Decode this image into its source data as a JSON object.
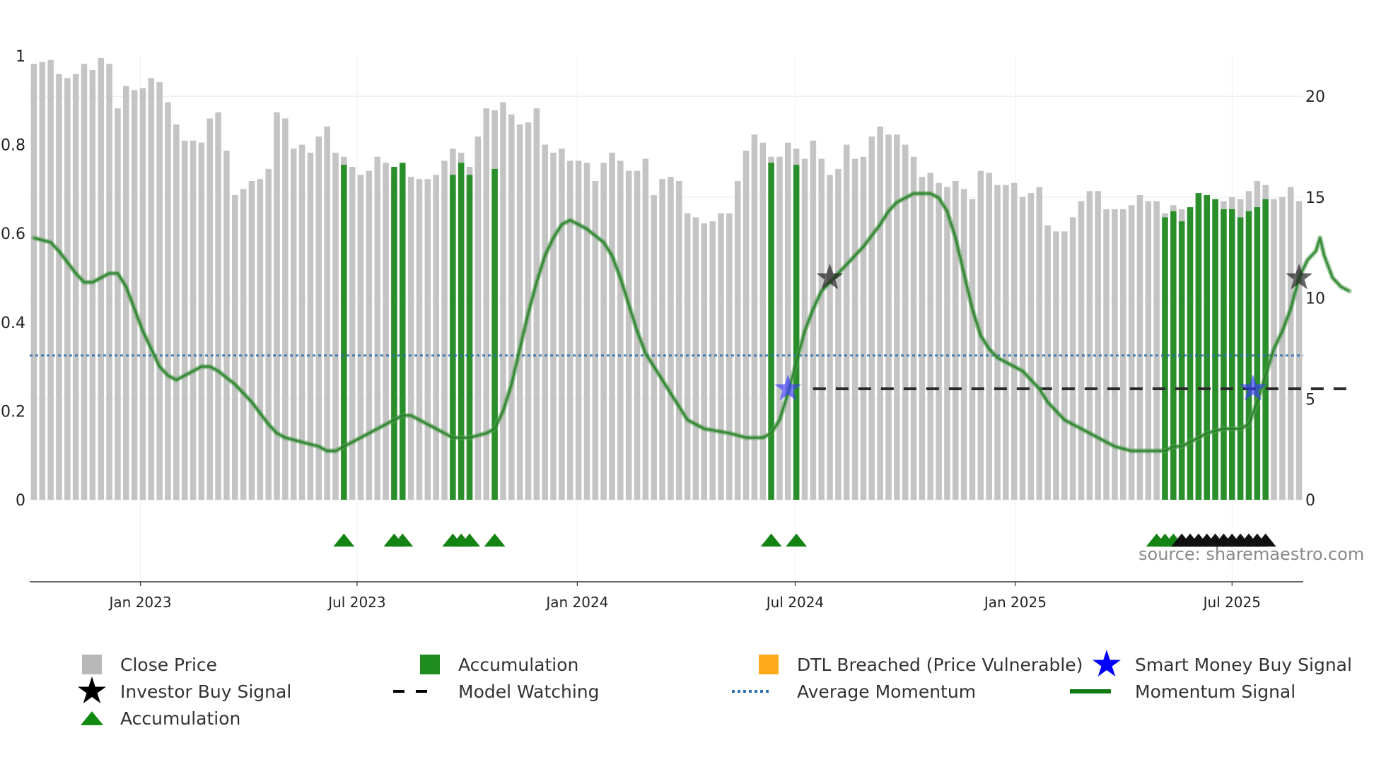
{
  "chart_data": {
    "type": "bar",
    "title": "",
    "source_text": "source: sharemaestro.com",
    "left_axis": {
      "range": [
        0,
        1
      ],
      "ticks": [
        "0",
        "0.2",
        "0.4",
        "0.6",
        "0.8",
        "1"
      ]
    },
    "right_axis": {
      "range": [
        0,
        22
      ],
      "ticks": [
        "0",
        "5",
        "10",
        "15",
        "20"
      ]
    },
    "x_axis": {
      "ticks": [
        "Jan 2023",
        "Jul 2023",
        "Jan 2024",
        "Jul 2024",
        "Jan 2025",
        "Jul 2025"
      ],
      "start": "2022-10-04",
      "end": "2025-10-06",
      "step_days": 7
    },
    "close_price": [
      21.6,
      21.7,
      21.8,
      21.1,
      20.9,
      21.1,
      21.6,
      21.3,
      21.9,
      21.6,
      19.4,
      20.5,
      20.3,
      20.4,
      20.9,
      20.7,
      19.7,
      18.6,
      17.8,
      17.8,
      17.7,
      18.9,
      19.2,
      17.3,
      15.1,
      15.4,
      15.8,
      15.9,
      16.4,
      19.2,
      18.9,
      17.4,
      17.6,
      17.2,
      18.0,
      18.5,
      17.2,
      17.0,
      16.5,
      16.1,
      16.3,
      17.0,
      16.7,
      15.7,
      15.6,
      16.0,
      15.9,
      15.9,
      16.1,
      16.8,
      17.4,
      17.2,
      16.5,
      18.0,
      19.4,
      19.3,
      19.7,
      19.1,
      18.6,
      18.7,
      19.4,
      17.6,
      17.2,
      17.4,
      16.8,
      16.8,
      16.7,
      15.8,
      16.7,
      17.2,
      16.8,
      16.3,
      16.3,
      16.9,
      15.1,
      15.9,
      16.0,
      15.8,
      14.2,
      14.0,
      13.7,
      13.8,
      14.2,
      14.2,
      15.8,
      17.3,
      18.1,
      17.7,
      17.0,
      17.0,
      17.7,
      17.4,
      16.9,
      17.8,
      16.9,
      16.1,
      16.4,
      17.6,
      16.9,
      17.0,
      18.0,
      18.5,
      18.1,
      18.1,
      17.6,
      17.0,
      16.0,
      16.2,
      15.7,
      15.5,
      15.8,
      15.4,
      14.9,
      16.3,
      16.2,
      15.6,
      15.6,
      15.7,
      15.0,
      15.2,
      15.5,
      13.6,
      13.3,
      13.3,
      14.0,
      14.8,
      15.3,
      15.3,
      14.4,
      14.4,
      14.4,
      14.6,
      15.1,
      14.8,
      14.8,
      14.2,
      14.6,
      14.4,
      14.3,
      14.5,
      14.6,
      14.8,
      14.8,
      15.0,
      14.9,
      15.3,
      15.8,
      15.6,
      14.9,
      15.0,
      15.5,
      14.8
    ],
    "accumulation_bars": [
      {
        "week": 37,
        "value": 16.6
      },
      {
        "week": 43,
        "value": 16.5
      },
      {
        "week": 44,
        "value": 16.7
      },
      {
        "week": 50,
        "value": 16.1
      },
      {
        "week": 51,
        "value": 16.7
      },
      {
        "week": 52,
        "value": 16.1
      },
      {
        "week": 55,
        "value": 16.4
      },
      {
        "week": 88,
        "value": 16.7
      },
      {
        "week": 91,
        "value": 16.6
      },
      {
        "week": 135,
        "value": 14.0
      },
      {
        "week": 136,
        "value": 14.3
      },
      {
        "week": 137,
        "value": 13.8
      },
      {
        "week": 138,
        "value": 14.5
      },
      {
        "week": 139,
        "value": 15.2
      },
      {
        "week": 140,
        "value": 15.1
      },
      {
        "week": 141,
        "value": 14.9
      },
      {
        "week": 142,
        "value": 14.4
      },
      {
        "week": 143,
        "value": 14.4
      },
      {
        "week": 144,
        "value": 14.0
      },
      {
        "week": 145,
        "value": 14.3
      },
      {
        "week": 146,
        "value": 14.5
      },
      {
        "week": 147,
        "value": 14.9
      }
    ],
    "momentum_signal": [
      [
        0,
        0.59
      ],
      [
        2,
        0.58
      ],
      [
        3,
        0.56
      ],
      [
        5,
        0.51
      ],
      [
        6,
        0.49
      ],
      [
        7,
        0.49
      ],
      [
        8,
        0.5
      ],
      [
        9,
        0.51
      ],
      [
        10,
        0.51
      ],
      [
        11,
        0.48
      ],
      [
        13,
        0.38
      ],
      [
        15,
        0.3
      ],
      [
        16,
        0.28
      ],
      [
        17,
        0.27
      ],
      [
        18,
        0.28
      ],
      [
        19,
        0.29
      ],
      [
        20,
        0.3
      ],
      [
        21,
        0.3
      ],
      [
        22,
        0.29
      ],
      [
        24,
        0.26
      ],
      [
        26,
        0.22
      ],
      [
        28,
        0.17
      ],
      [
        29,
        0.15
      ],
      [
        30,
        0.14
      ],
      [
        32,
        0.13
      ],
      [
        34,
        0.12
      ],
      [
        35,
        0.11
      ],
      [
        36,
        0.11
      ],
      [
        37,
        0.12
      ],
      [
        38,
        0.13
      ],
      [
        40,
        0.15
      ],
      [
        42,
        0.17
      ],
      [
        43,
        0.18
      ],
      [
        44,
        0.19
      ],
      [
        45,
        0.19
      ],
      [
        46,
        0.18
      ],
      [
        48,
        0.16
      ],
      [
        49,
        0.15
      ],
      [
        50,
        0.14
      ],
      [
        52,
        0.14
      ],
      [
        54,
        0.15
      ],
      [
        55,
        0.16
      ],
      [
        56,
        0.2
      ],
      [
        57,
        0.26
      ],
      [
        58,
        0.34
      ],
      [
        59,
        0.42
      ],
      [
        60,
        0.49
      ],
      [
        61,
        0.55
      ],
      [
        62,
        0.59
      ],
      [
        63,
        0.62
      ],
      [
        64,
        0.63
      ],
      [
        65,
        0.62
      ],
      [
        66,
        0.61
      ],
      [
        68,
        0.58
      ],
      [
        69,
        0.55
      ],
      [
        70,
        0.5
      ],
      [
        71,
        0.44
      ],
      [
        72,
        0.38
      ],
      [
        73,
        0.33
      ],
      [
        74,
        0.3
      ],
      [
        75,
        0.27
      ],
      [
        76,
        0.24
      ],
      [
        77,
        0.21
      ],
      [
        78,
        0.18
      ],
      [
        80,
        0.16
      ],
      [
        83,
        0.15
      ],
      [
        85,
        0.14
      ],
      [
        86,
        0.14
      ],
      [
        87,
        0.14
      ],
      [
        88,
        0.15
      ],
      [
        89,
        0.18
      ],
      [
        90,
        0.24
      ],
      [
        91,
        0.31
      ],
      [
        92,
        0.38
      ],
      [
        93,
        0.43
      ],
      [
        94,
        0.47
      ],
      [
        95,
        0.49
      ],
      [
        96,
        0.51
      ],
      [
        97,
        0.53
      ],
      [
        99,
        0.57
      ],
      [
        101,
        0.62
      ],
      [
        102,
        0.65
      ],
      [
        103,
        0.67
      ],
      [
        104,
        0.68
      ],
      [
        105,
        0.69
      ],
      [
        106,
        0.69
      ],
      [
        107,
        0.69
      ],
      [
        108,
        0.68
      ],
      [
        109,
        0.65
      ],
      [
        110,
        0.59
      ],
      [
        111,
        0.51
      ],
      [
        112,
        0.43
      ],
      [
        113,
        0.37
      ],
      [
        114,
        0.34
      ],
      [
        115,
        0.32
      ],
      [
        116,
        0.31
      ],
      [
        117,
        0.3
      ],
      [
        118,
        0.29
      ],
      [
        119,
        0.27
      ],
      [
        120,
        0.25
      ],
      [
        121,
        0.22
      ],
      [
        122,
        0.2
      ],
      [
        123,
        0.18
      ],
      [
        125,
        0.16
      ],
      [
        127,
        0.14
      ],
      [
        128,
        0.13
      ],
      [
        129,
        0.12
      ],
      [
        131,
        0.11
      ],
      [
        133,
        0.11
      ],
      [
        135,
        0.11
      ],
      [
        136,
        0.12
      ],
      [
        137,
        0.12
      ],
      [
        138,
        0.13
      ],
      [
        140,
        0.15
      ],
      [
        142,
        0.16
      ],
      [
        144,
        0.16
      ],
      [
        145,
        0.17
      ],
      [
        146,
        0.22
      ],
      [
        147,
        0.28
      ],
      [
        148,
        0.34
      ],
      [
        149,
        0.38
      ],
      [
        150,
        0.43
      ],
      [
        151,
        0.5
      ],
      [
        152,
        0.54
      ],
      [
        153,
        0.56
      ],
      [
        153.5,
        0.59
      ],
      [
        154,
        0.55
      ],
      [
        155,
        0.5
      ],
      [
        156,
        0.48
      ],
      [
        157,
        0.47
      ]
    ],
    "average_momentum": 0.325,
    "model_watching": {
      "from_week": 93,
      "to_week": 157,
      "value": 0.25
    },
    "smart_money_buy_signal": [
      {
        "week": 90,
        "value": 0.25
      },
      {
        "week": 145.5,
        "value": 0.25
      }
    ],
    "investor_buy_signal": [
      {
        "week": 95,
        "value": 0.5
      },
      {
        "week": 151,
        "value": 0.5
      }
    ],
    "accumulation_markers": [
      37,
      43,
      44,
      50,
      51,
      52,
      55,
      88,
      91,
      134,
      135,
      136,
      137
    ],
    "model_markers": [
      137,
      138,
      139,
      140,
      141,
      142,
      143,
      144,
      145,
      146,
      147
    ],
    "legend": [
      {
        "label": "Close Price",
        "color": "#b8b8b8",
        "shape": "square"
      },
      {
        "label": "Accumulation",
        "color": "#1f8c1f",
        "shape": "square"
      },
      {
        "label": "DTL Breached (Price Vulnerable)",
        "color": "#ffaa1a",
        "shape": "square"
      },
      {
        "label": "Smart Money Buy Signal",
        "color": "#0000ff",
        "shape": "star"
      },
      {
        "label": "Investor Buy Signal",
        "color": "#000000",
        "shape": "star"
      },
      {
        "label": "Model Watching",
        "color": "#000000",
        "shape": "dash"
      },
      {
        "label": "Average Momentum",
        "color": "#2c70b0",
        "shape": "dot"
      },
      {
        "label": "Momentum Signal",
        "color": "#0f7a0f",
        "shape": "line"
      },
      {
        "label": "Accumulation",
        "color": "#0f8a0f",
        "shape": "triangle"
      }
    ]
  }
}
